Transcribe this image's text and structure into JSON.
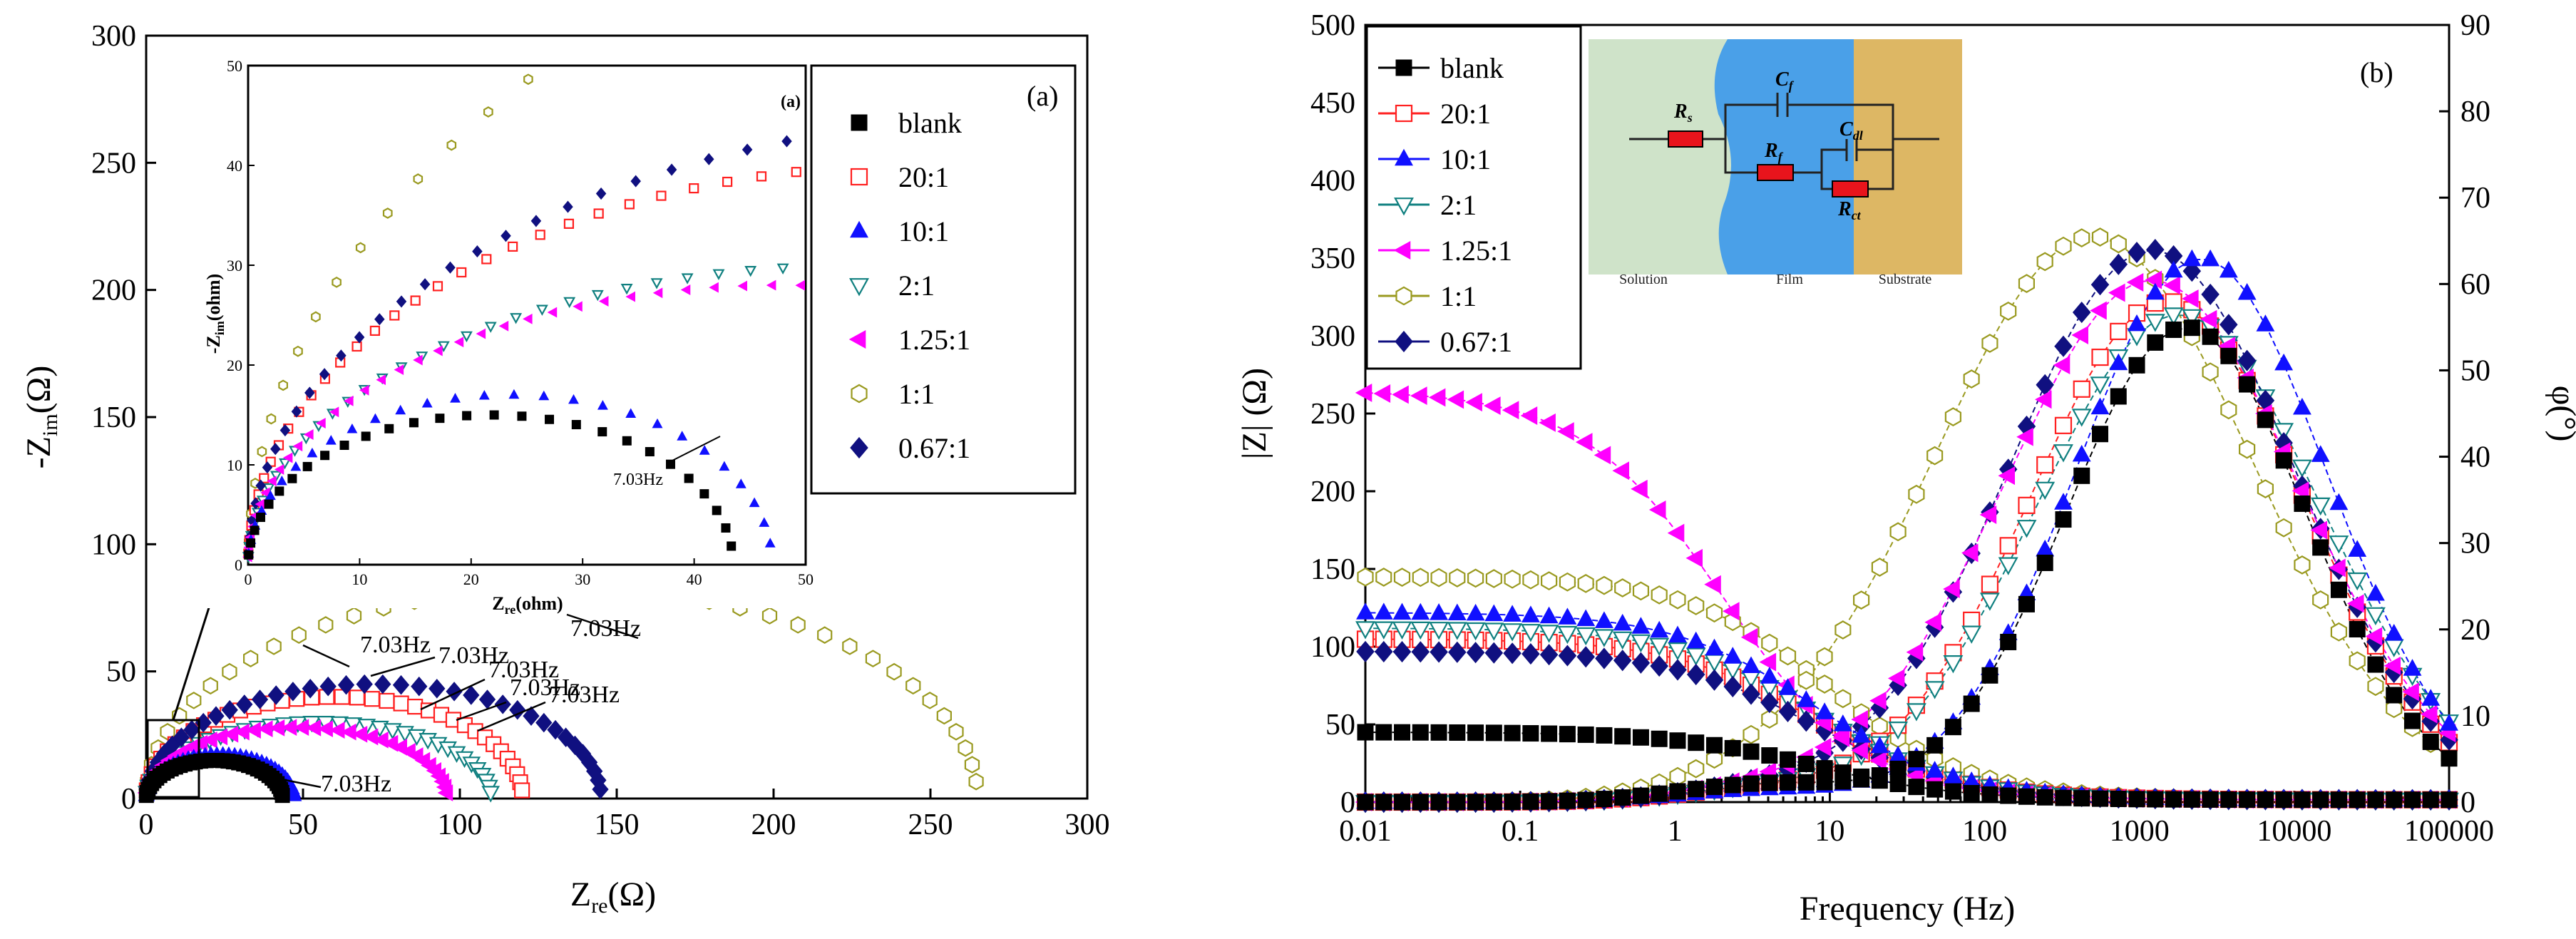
{
  "chart_data": [
    {
      "type": "scatter",
      "panel_label": "(a)",
      "xlabel": "Z",
      "xlabel_sub": "re",
      "xlabel_unit": "(Ω)",
      "ylabel": "-Z",
      "ylabel_sub": "im",
      "ylabel_unit": "(Ω)",
      "xlim": [
        0,
        300
      ],
      "ylim": [
        0,
        300
      ],
      "xticks": [
        "0",
        "50",
        "100",
        "150",
        "200",
        "250",
        "300"
      ],
      "yticks": [
        "0",
        "50",
        "100",
        "150",
        "200",
        "250",
        "300"
      ],
      "series": [
        {
          "name": "blank",
          "marker": "square",
          "color": "#000000",
          "filled": true,
          "r0": 0,
          "r1": 43.5,
          "peak": 15
        },
        {
          "name": "20:1",
          "marker": "square",
          "color": "#ff2020",
          "filled": false,
          "r0": 0,
          "r1": 120,
          "peak": 40
        },
        {
          "name": "10:1",
          "marker": "triangle-up",
          "color": "#1010ff",
          "filled": true,
          "r0": 0,
          "r1": 47,
          "peak": 17
        },
        {
          "name": "2:1",
          "marker": "triangle-down",
          "color": "#108080",
          "filled": false,
          "r0": 0,
          "r1": 110,
          "peak": 30
        },
        {
          "name": "1.25:1",
          "marker": "triangle-left",
          "color": "#ff00ff",
          "filled": true,
          "r0": 0,
          "r1": 96,
          "peak": 28
        },
        {
          "name": "1:1",
          "marker": "hexagon",
          "color": "#9a9a20",
          "filled": false,
          "r0": 0,
          "r1": 265,
          "peak": 83
        },
        {
          "name": "0.67:1",
          "marker": "diamond",
          "color": "#101080",
          "filled": true,
          "r0": 0,
          "r1": 145,
          "peak": 45
        }
      ],
      "annotations": [
        "7.03Hz",
        "7.03Hz",
        "7.03Hz",
        "7.03Hz",
        "7.03Hz",
        "7.03Hz",
        "7.03Hz"
      ],
      "inset": {
        "panel_label": "(a)",
        "xlabel": "Z",
        "xlabel_sub": "re",
        "xlabel_unit": "(ohm)",
        "ylabel": "-Z",
        "ylabel_sub": "im",
        "ylabel_unit": "(ohm)",
        "xlim": [
          0,
          50
        ],
        "ylim": [
          0,
          50
        ],
        "xticks": [
          "0",
          "10",
          "20",
          "30",
          "40",
          "50"
        ],
        "yticks": [
          "0",
          "10",
          "20",
          "30",
          "40",
          "50"
        ],
        "annotation": "7.03Hz"
      }
    },
    {
      "type": "line",
      "panel_label": "(b)",
      "xlabel": "Frequency (Hz)",
      "ylabel_left": "|Z| (Ω)",
      "ylabel_right": "φ(°)",
      "xscale": "log",
      "xlim": [
        0.01,
        100000
      ],
      "ylim_left": [
        0,
        500
      ],
      "ylim_right": [
        0,
        90
      ],
      "xticks": [
        "0.01",
        "0.1",
        "1",
        "10",
        "100",
        "1000",
        "10000",
        "100000"
      ],
      "yticks_left": [
        "0",
        "50",
        "100",
        "150",
        "200",
        "250",
        "300",
        "350",
        "400",
        "450",
        "500"
      ],
      "yticks_right": [
        "0",
        "10",
        "20",
        "30",
        "40",
        "50",
        "60",
        "70",
        "80",
        "90"
      ],
      "series": [
        {
          "name": "blank",
          "marker": "square",
          "color": "#000000",
          "filled": true,
          "modulus_low": 45,
          "modulus_transition_hz": 8,
          "phase_max": 55,
          "phase_peak_hz": 2000,
          "phase_width": 1.1
        },
        {
          "name": "20:1",
          "marker": "square",
          "color": "#ff2020",
          "filled": false,
          "modulus_low": 105,
          "modulus_transition_hz": 8,
          "phase_max": 58,
          "phase_peak_hz": 1500,
          "phase_width": 1.25
        },
        {
          "name": "10:1",
          "marker": "triangle-up",
          "color": "#1010ff",
          "filled": true,
          "modulus_low": 122,
          "modulus_transition_hz": 8,
          "phase_max": 63,
          "phase_peak_hz": 2500,
          "phase_width": 1.15
        },
        {
          "name": "2:1",
          "marker": "triangle-down",
          "color": "#108080",
          "filled": false,
          "modulus_low": 112,
          "modulus_transition_hz": 8,
          "phase_max": 56.5,
          "phase_peak_hz": 1800,
          "phase_width": 1.3
        },
        {
          "name": "1.25:1",
          "marker": "triangle-left",
          "color": "#ff00ff",
          "filled": true,
          "modulus_low": 265,
          "modulus_transition_hz": 2,
          "phase_max": 60.5,
          "phase_peak_hz": 1200,
          "phase_width": 1.35
        },
        {
          "name": "1:1",
          "marker": "hexagon",
          "color": "#9a9a20",
          "filled": false,
          "modulus_low": 145,
          "modulus_transition_hz": 10,
          "phase_max": 65.5,
          "phase_peak_hz": 500,
          "phase_width": 1.45
        },
        {
          "name": "0.67:1",
          "marker": "diamond",
          "color": "#101080",
          "filled": true,
          "modulus_low": 97,
          "modulus_transition_hz": 8,
          "phase_max": 64,
          "phase_peak_hz": 1200,
          "phase_width": 1.3
        }
      ],
      "circuit": {
        "regions": [
          "Solution",
          "Film",
          "Substrate"
        ],
        "colors": [
          "#cfe3c9",
          "#4aa0e8",
          "#ddb764"
        ],
        "resistor_color": "#e8141c",
        "elements": [
          {
            "symbol": "R",
            "sub": "s"
          },
          {
            "symbol": "C",
            "sub": "f"
          },
          {
            "symbol": "R",
            "sub": "f"
          },
          {
            "symbol": "C",
            "sub": "dl"
          },
          {
            "symbol": "R",
            "sub": "ct"
          }
        ]
      }
    }
  ]
}
